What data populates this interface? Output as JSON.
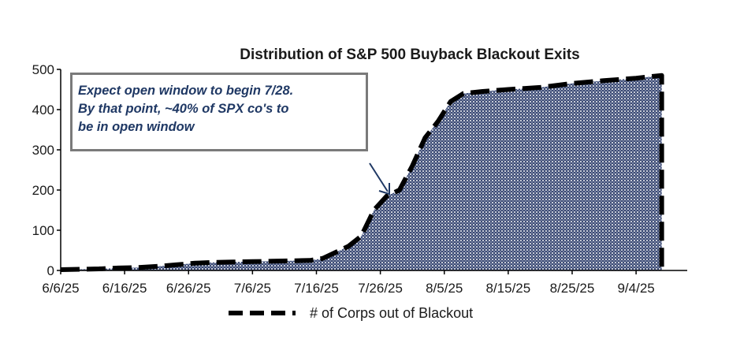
{
  "chart_data": {
    "type": "area",
    "title": "Distribution of S&P 500 Buyback Blackout Exits",
    "xlabel": "",
    "ylabel": "",
    "ylim": [
      0,
      500
    ],
    "y_ticks": [
      "0",
      "100",
      "200",
      "300",
      "400",
      "500"
    ],
    "x_tick_labels": [
      "6/6/25",
      "6/16/25",
      "6/26/25",
      "7/6/25",
      "7/16/25",
      "7/26/25",
      "8/5/25",
      "8/15/25",
      "8/25/25",
      "9/4/25"
    ],
    "grid": false,
    "legend_position": "bottom",
    "series": [
      {
        "name": "# of Corps out of Blackout",
        "x": [
          "6/6/25",
          "6/9/25",
          "6/12/25",
          "6/15/25",
          "6/18/25",
          "6/21/25",
          "6/24/25",
          "6/27/25",
          "6/30/25",
          "7/3/25",
          "7/6/25",
          "7/9/25",
          "7/12/25",
          "7/15/25",
          "7/17/25",
          "7/19/25",
          "7/21/25",
          "7/23/25",
          "7/25/25",
          "7/27/25",
          "7/29/25",
          "7/31/25",
          "8/2/25",
          "8/4/25",
          "8/6/25",
          "8/8/25",
          "8/11/25",
          "8/15/25",
          "8/20/25",
          "8/25/25",
          "8/30/25",
          "9/4/25",
          "9/8/25"
        ],
        "values": [
          2,
          3,
          4,
          6,
          7,
          10,
          14,
          18,
          20,
          21,
          22,
          23,
          24,
          25,
          30,
          45,
          60,
          85,
          150,
          185,
          200,
          260,
          330,
          370,
          420,
          440,
          445,
          450,
          455,
          465,
          472,
          478,
          485
        ]
      }
    ]
  },
  "annotation": {
    "text": "Expect open window to begin 7/28.\n By that point, ~40% of SPX co's to\nbe in open window"
  },
  "colors": {
    "fill_dark": "#3b4a74",
    "fill_dot": "#ffffff",
    "line": "#000000",
    "annotation_text": "#1f3864",
    "annotation_border": "#7a7a7a",
    "arrow": "#1f3864"
  }
}
